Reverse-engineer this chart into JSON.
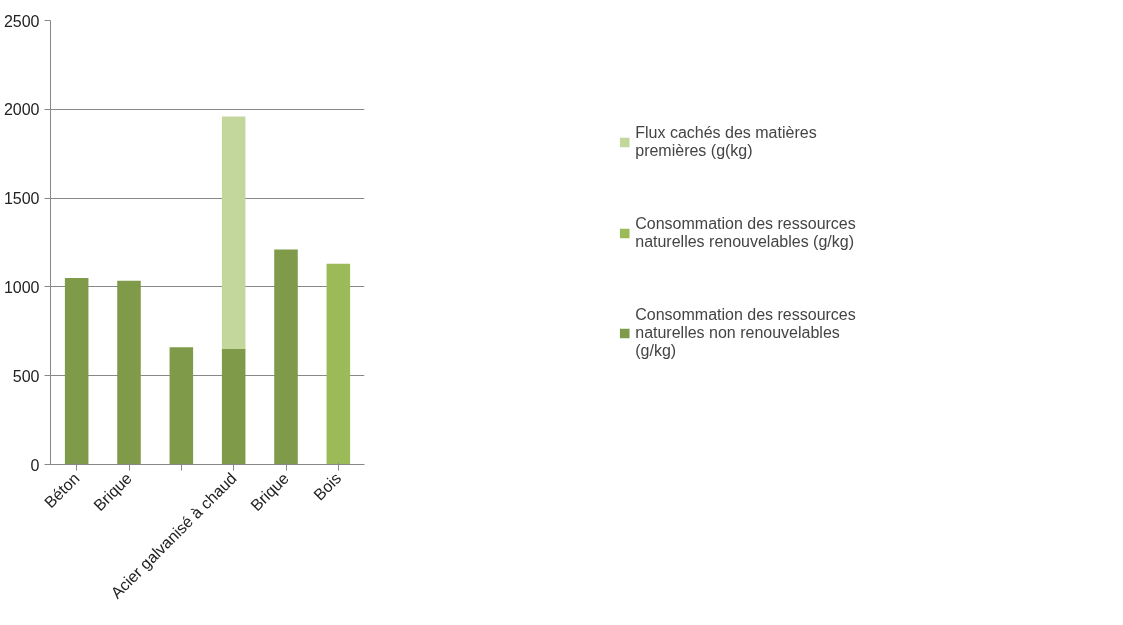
{
  "chart_data": {
    "type": "bar",
    "stacked": true,
    "categories": [
      "Béton",
      "Brique",
      null,
      "Acier galvanisé à chaud",
      "Brique",
      "Bois"
    ],
    "series": [
      {
        "name": "Consommation des ressources naturelles non renouvelables (g/kg)",
        "color": "#7f9a48",
        "values": [
          1050,
          1035,
          660,
          650,
          1210,
          null
        ]
      },
      {
        "name": "Consommation des ressources naturelles renouvelables (g/kg)",
        "color": "#9bbb59",
        "values": [
          null,
          null,
          null,
          null,
          null,
          1130
        ]
      },
      {
        "name": "Flux cachés des matières premières (g(kg)",
        "color": "#c3d69b",
        "values": [
          null,
          null,
          null,
          1310,
          null,
          null
        ]
      }
    ],
    "ylim": [
      0,
      2500
    ],
    "yticks": [
      0,
      500,
      1000,
      1500,
      2000,
      2500
    ],
    "grid": "y",
    "legend": "right"
  }
}
